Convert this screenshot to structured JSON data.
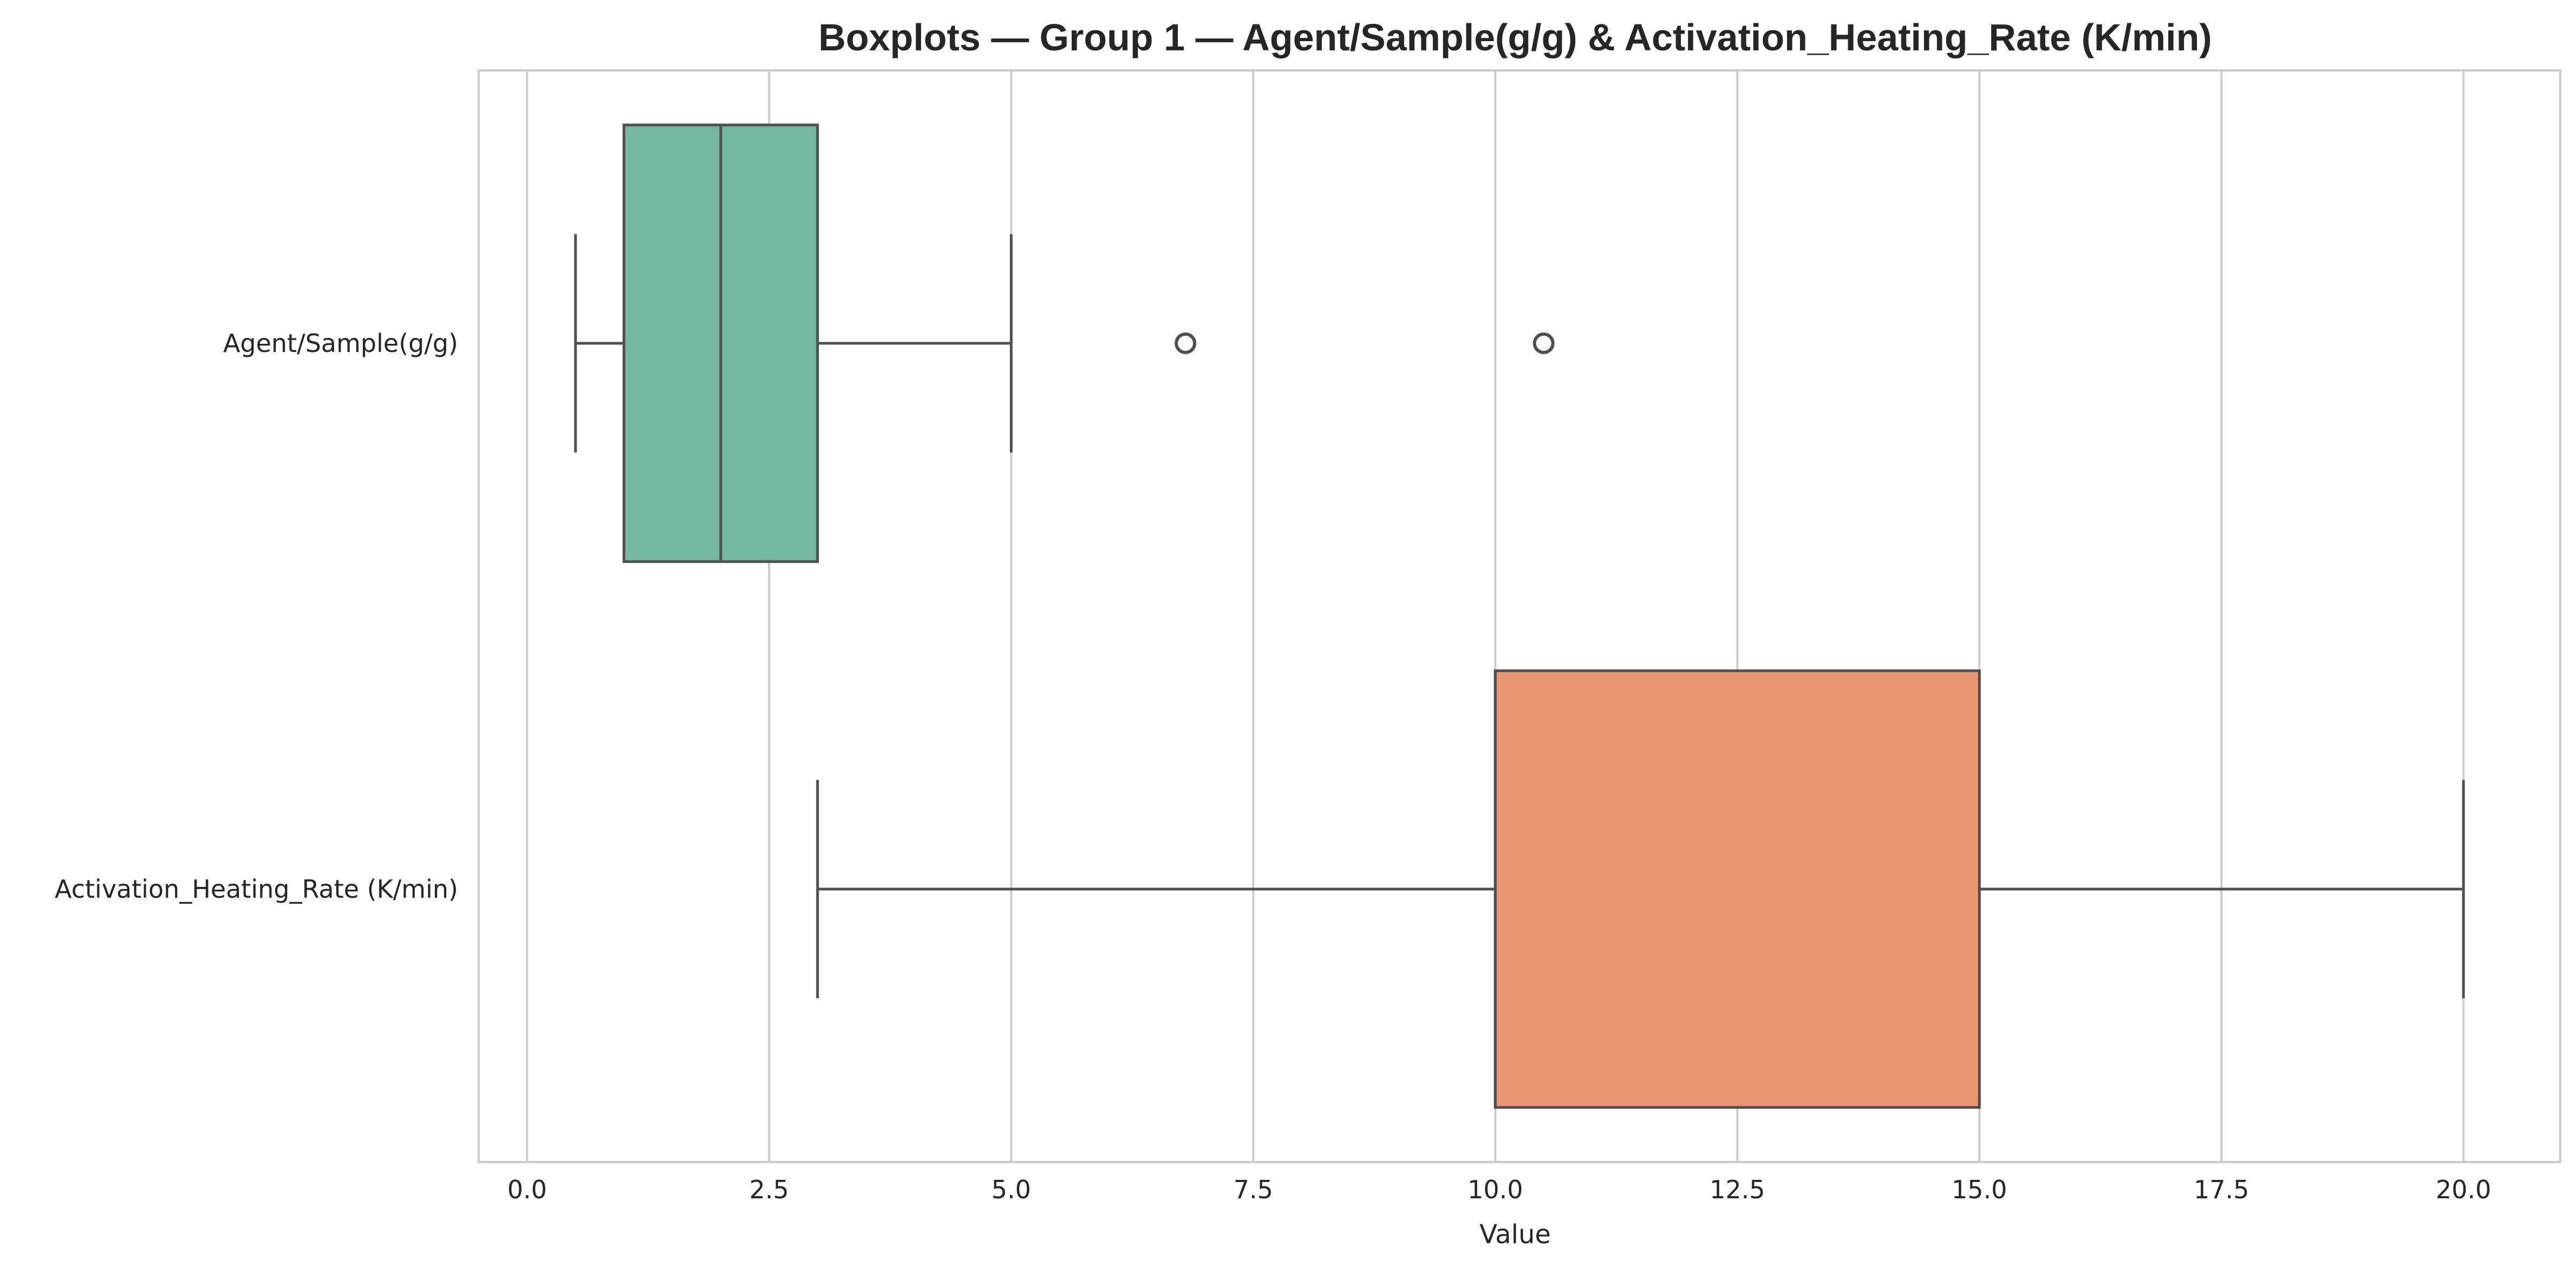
{
  "chart_data": {
    "type": "boxplot",
    "orientation": "horizontal",
    "title": "Boxplots — Group 1 — Agent/Sample(g/g) & Activation_Heating_Rate (K/min)",
    "xlabel": "Value",
    "ylabel": "",
    "xlim": [
      -0.5,
      21.0
    ],
    "xticks": [
      0.0,
      2.5,
      5.0,
      7.5,
      10.0,
      12.5,
      15.0,
      17.5,
      20.0
    ],
    "xtick_labels": [
      "0.0",
      "2.5",
      "5.0",
      "7.5",
      "10.0",
      "12.5",
      "15.0",
      "17.5",
      "20.0"
    ],
    "grid": true,
    "series": [
      {
        "name": "Agent/Sample(g/g)",
        "color": "#73b7a1",
        "whisker_low": 0.5,
        "q1": 1.0,
        "median": 2.0,
        "q3": 3.0,
        "whisker_high": 5.0,
        "outliers": [
          6.8,
          10.5
        ]
      },
      {
        "name": "Activation_Heating_Rate (K/min)",
        "color": "#e99876",
        "whisker_low": 3.0,
        "q1": 10.0,
        "median": 10.0,
        "q3": 15.0,
        "whisker_high": 20.0,
        "outliers": []
      }
    ]
  }
}
